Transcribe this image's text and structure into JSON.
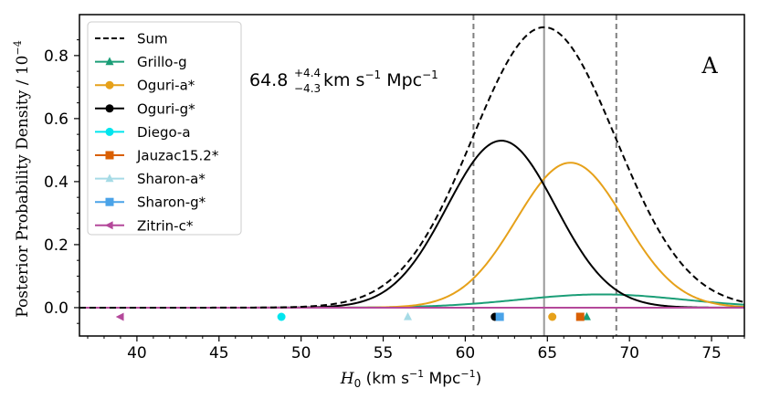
{
  "chart_data": {
    "type": "line",
    "panel_label": "A",
    "xlabel_main": "H",
    "xlabel_sub": "0",
    "xlabel_rest": " (km s",
    "xlabel_exp": "−1",
    "xlabel_end": " Mpc",
    "xlabel_exp2": "−1",
    "xlabel_close": ")",
    "ylabel": "Posterior Probability Density / 10",
    "ylabel_exp": "−4",
    "xlim": [
      36.5,
      77
    ],
    "ylim": [
      -0.09,
      0.93
    ],
    "xticks": [
      40,
      45,
      50,
      55,
      60,
      65,
      70,
      75
    ],
    "yticks": [
      0.0,
      0.2,
      0.4,
      0.6,
      0.8
    ],
    "ytick_labels": [
      "0.0",
      "0.2",
      "0.4",
      "0.6",
      "0.8"
    ],
    "annotation": {
      "value": "64.8",
      "sup": "+4.4",
      "sub": "−4.3",
      "unit_a": " km s",
      "unit_a_exp": "−1",
      "unit_b": " Mpc",
      "unit_b_exp": "−1"
    },
    "median": 64.8,
    "lower": 60.5,
    "upper": 69.2,
    "series": [
      {
        "name": "Sum",
        "color": "#000000",
        "style": "dashed",
        "marker": "none",
        "mu": 64.8,
        "sigma": 4.35,
        "amp": 0.89,
        "point_x": null
      },
      {
        "name": "Grillo-g",
        "color": "#1b9e77",
        "style": "solid",
        "marker": "triangle",
        "mu": 68.3,
        "sigma": 5.0,
        "amp": 0.042,
        "point_x": 67.4
      },
      {
        "name": "Oguri-a*",
        "color": "#e6a11a",
        "style": "solid",
        "marker": "circle",
        "mu": 66.4,
        "sigma": 3.3,
        "amp": 0.46,
        "point_x": 65.3
      },
      {
        "name": "Oguri-g*",
        "color": "#000000",
        "style": "solid",
        "marker": "circle",
        "mu": 62.2,
        "sigma": 3.3,
        "amp": 0.53,
        "point_x": 61.8
      },
      {
        "name": "Diego-a",
        "color": "#00e5ee",
        "style": "solid",
        "marker": "circle",
        "mu": 48.8,
        "sigma": 3.0,
        "amp": 0.0,
        "point_x": 48.8
      },
      {
        "name": "Jauzac15.2*",
        "color": "#d95f02",
        "style": "solid",
        "marker": "square",
        "mu": 67.0,
        "sigma": 3.0,
        "amp": 0.0,
        "point_x": 67.0
      },
      {
        "name": "Sharon-a*",
        "color": "#a6dbe6",
        "style": "solid",
        "marker": "triangle",
        "mu": 56.5,
        "sigma": 3.0,
        "amp": 0.0,
        "point_x": 56.5
      },
      {
        "name": "Sharon-g*",
        "color": "#4aa3e8",
        "style": "solid",
        "marker": "square",
        "mu": 62.1,
        "sigma": 3.0,
        "amp": 0.0,
        "point_x": 62.1
      },
      {
        "name": "Zitrin-c*",
        "color": "#b4489a",
        "style": "solid",
        "marker": "triangle-left",
        "mu": 39.0,
        "sigma": 3.0,
        "amp": 0.0,
        "point_x": 39.0
      }
    ]
  }
}
